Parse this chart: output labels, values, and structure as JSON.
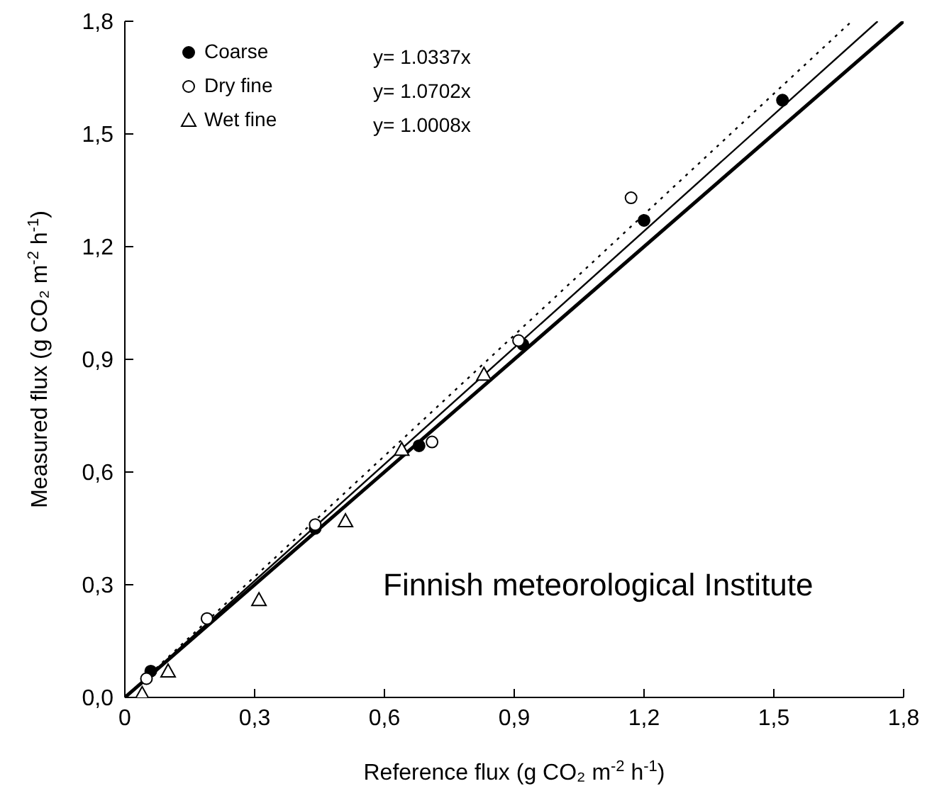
{
  "chart_data": {
    "type": "scatter",
    "xlabel": "Reference flux (g CO₂ m$^{-2}$ h$^{-1}$)",
    "ylabel": "Measured flux (g CO₂ m$^{-2}$ h$^{-1}$)",
    "xlim": [
      0,
      1.8
    ],
    "ylim": [
      0,
      1.8
    ],
    "xticks": [
      0,
      {
        "value": 0.3,
        "label": "0,3"
      },
      {
        "value": 0.6,
        "label": "0,6"
      },
      {
        "value": 0.9,
        "label": "0,9"
      },
      {
        "value": 1.2,
        "label": "1,2"
      },
      {
        "value": 1.5,
        "label": "1,5"
      },
      {
        "value": 1.8,
        "label": "1,8"
      }
    ],
    "yticks": [
      {
        "value": 0,
        "label": "0,0"
      },
      {
        "value": 0.3,
        "label": "0,3"
      },
      {
        "value": 0.6,
        "label": "0,6"
      },
      {
        "value": 0.9,
        "label": "0,9"
      },
      {
        "value": 1.2,
        "label": "1,2"
      },
      {
        "value": 1.5,
        "label": "1,5"
      },
      {
        "value": 1.8,
        "label": "1,8"
      }
    ],
    "legend": "top left",
    "grid": false,
    "series": [
      {
        "name": "Coarse",
        "marker": "circle",
        "color": "#000000",
        "x": [
          0.06,
          0.44,
          0.68,
          0.92,
          1.2,
          1.52
        ],
        "values": [
          0.07,
          0.45,
          0.67,
          0.94,
          1.27,
          1.59
        ]
      },
      {
        "name": "Dry fine",
        "marker": "circle",
        "color": "#ffffff",
        "x": [
          0.05,
          0.19,
          0.44,
          0.71,
          0.91,
          1.17
        ],
        "values": [
          0.05,
          0.21,
          0.46,
          0.68,
          0.95,
          1.33
        ]
      },
      {
        "name": "Wet fine",
        "marker": "triangle",
        "color": "#ffffff",
        "x": [
          0.04,
          0.1,
          0.31,
          0.51,
          0.64,
          0.83
        ],
        "values": [
          0.01,
          0.07,
          0.26,
          0.47,
          0.66,
          0.86
        ]
      },
      {
        "type": "line",
        "line_style": "solid",
        "color": "#000000",
        "x": [
          0,
          1.74
        ],
        "values": [
          0,
          1.8
        ]
      },
      {
        "type": "line",
        "line_style": "dotted",
        "color": "#000000",
        "x": [
          0,
          1.68
        ],
        "values": [
          0,
          1.8
        ]
      },
      {
        "type": "line",
        "line_style": "solid",
        "color": "#000000",
        "x": [
          0,
          1.8
        ],
        "values": [
          0,
          1.8
        ]
      }
    ],
    "annotations": [
      "y= 1.0337x",
      "y= 1.0702x",
      "y= 1.0008x",
      "Finnish meteorological Institute"
    ]
  }
}
